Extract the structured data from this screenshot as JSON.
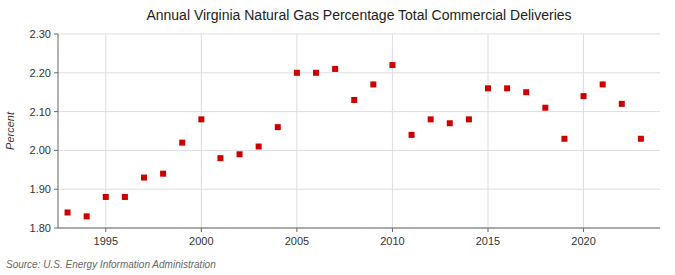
{
  "chart_data": {
    "type": "scatter",
    "title": "Annual Virginia Natural Gas Percentage Total Commercial Deliveries",
    "ylabel": "Percent",
    "source": "Source: U.S. Energy Information Administration",
    "x": [
      1993,
      1994,
      1995,
      1996,
      1997,
      1998,
      1999,
      2000,
      2001,
      2002,
      2003,
      2004,
      2005,
      2006,
      2007,
      2008,
      2009,
      2010,
      2011,
      2012,
      2013,
      2014,
      2015,
      2016,
      2017,
      2018,
      2019,
      2020,
      2021,
      2022,
      2023
    ],
    "values": [
      1.84,
      1.83,
      1.88,
      1.88,
      1.93,
      1.94,
      2.02,
      2.08,
      1.98,
      1.99,
      2.01,
      2.06,
      2.2,
      2.2,
      2.21,
      2.13,
      2.17,
      2.22,
      2.04,
      2.08,
      2.07,
      2.08,
      2.16,
      2.16,
      2.15,
      2.11,
      2.03,
      2.14,
      2.17,
      2.12,
      2.03
    ],
    "color": "#cc0000",
    "marker": "square",
    "xlim": [
      1992.5,
      2024
    ],
    "xticks": [
      1995,
      2000,
      2005,
      2010,
      2015,
      2020
    ],
    "ylim": [
      1.8,
      2.3
    ],
    "yticks": [
      {
        "value": 1.8,
        "label": "1.80"
      },
      {
        "value": 1.9,
        "label": "1.90"
      },
      {
        "value": 2.0,
        "label": "2.00"
      },
      {
        "value": 2.1,
        "label": "2.10"
      },
      {
        "value": 2.2,
        "label": "2.20"
      },
      {
        "value": 2.3,
        "label": "2.30"
      }
    ],
    "grid": true
  }
}
